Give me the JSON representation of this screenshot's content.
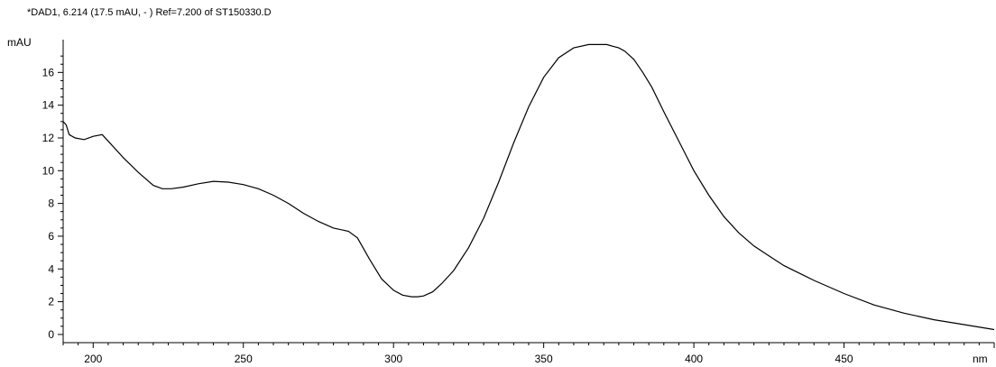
{
  "chart_data": {
    "type": "line",
    "title": "*DAD1, 6.214 (17.5 mAU, - ) Ref=7.200 of ST150330.D",
    "ylabel": "mAU",
    "xlabel": "nm",
    "xlim": [
      190,
      500
    ],
    "ylim": [
      -0.5,
      18
    ],
    "x_ticks": [
      200,
      250,
      300,
      350,
      400,
      450
    ],
    "y_ticks": [
      0,
      2,
      4,
      6,
      8,
      10,
      12,
      14,
      16
    ],
    "grid": false,
    "line_color": "#000000",
    "series": [
      {
        "x": [
          190,
          191,
          192,
          194,
          197,
          200,
          203,
          206,
          210,
          215,
          220,
          223,
          226,
          230,
          235,
          240,
          245,
          250,
          255,
          260,
          265,
          270,
          275,
          280,
          285,
          288,
          292,
          296,
          300,
          303,
          306,
          308,
          310,
          313,
          316,
          320,
          325,
          330,
          335,
          340,
          345,
          350,
          355,
          360,
          365,
          368,
          371,
          373,
          375,
          377,
          380,
          383,
          386,
          390,
          395,
          400,
          405,
          410,
          415,
          420,
          425,
          430,
          440,
          450,
          460,
          470,
          480,
          490,
          500
        ],
        "y": [
          13.0,
          12.8,
          12.2,
          12.0,
          11.9,
          12.1,
          12.2,
          11.6,
          10.8,
          9.9,
          9.1,
          8.9,
          8.9,
          9.0,
          9.2,
          9.35,
          9.3,
          9.15,
          8.9,
          8.5,
          8.0,
          7.4,
          6.9,
          6.5,
          6.3,
          5.9,
          4.6,
          3.4,
          2.7,
          2.4,
          2.3,
          2.3,
          2.35,
          2.6,
          3.1,
          3.9,
          5.3,
          7.1,
          9.3,
          11.7,
          13.9,
          15.7,
          16.9,
          17.5,
          17.7,
          17.7,
          17.7,
          17.6,
          17.5,
          17.3,
          16.8,
          16.0,
          15.1,
          13.6,
          11.8,
          10.0,
          8.5,
          7.2,
          6.2,
          5.4,
          4.8,
          4.2,
          3.3,
          2.5,
          1.8,
          1.3,
          0.9,
          0.6,
          0.3
        ]
      }
    ]
  }
}
